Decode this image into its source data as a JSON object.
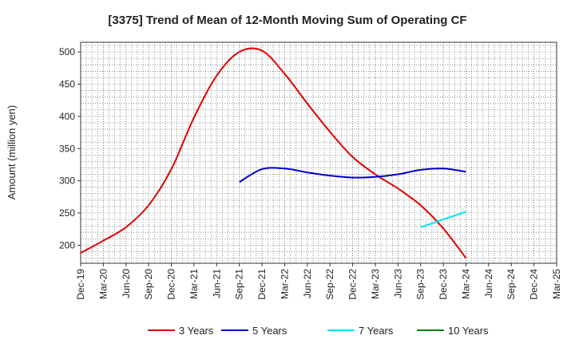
{
  "chart_data": {
    "type": "line",
    "title": "[3375]  Trend of Mean of 12-Month Moving Sum of Operating CF",
    "xlabel": "",
    "ylabel": "Amount (million yen)",
    "ylim": [
      172,
      515
    ],
    "yticks": [
      200,
      250,
      300,
      350,
      400,
      450,
      500
    ],
    "grid": true,
    "legend": "bottom",
    "categories": [
      "Dec-19",
      "Mar-20",
      "Jun-20",
      "Sep-20",
      "Dec-20",
      "Mar-21",
      "Jun-21",
      "Sep-21",
      "Dec-21",
      "Mar-22",
      "Jun-22",
      "Sep-22",
      "Dec-22",
      "Mar-23",
      "Jun-23",
      "Sep-23",
      "Dec-23",
      "Mar-24",
      "Jun-24",
      "Sep-24",
      "Dec-24",
      "Mar-25"
    ],
    "series": [
      {
        "name": "3 Years",
        "color": "#e00000",
        "x": [
          "Dec-19",
          "Mar-20",
          "Jun-20",
          "Sep-20",
          "Dec-20",
          "Mar-21",
          "Jun-21",
          "Sep-21",
          "Dec-21",
          "Mar-22",
          "Jun-22",
          "Sep-22",
          "Dec-22",
          "Mar-23",
          "Jun-23",
          "Sep-23",
          "Dec-23",
          "Mar-24"
        ],
        "values": [
          188,
          207,
          228,
          262,
          318,
          398,
          463,
          500,
          502,
          466,
          420,
          376,
          337,
          310,
          288,
          262,
          226,
          180
        ]
      },
      {
        "name": "5 Years",
        "color": "#0000cc",
        "x": [
          "Sep-21",
          "Dec-21",
          "Mar-22",
          "Jun-22",
          "Sep-22",
          "Dec-22",
          "Mar-23",
          "Jun-23",
          "Sep-23",
          "Dec-23",
          "Mar-24"
        ],
        "values": [
          298,
          318,
          319,
          313,
          308,
          305,
          306,
          310,
          317,
          319,
          314
        ]
      },
      {
        "name": "7 Years",
        "color": "#00e5ee",
        "x": [
          "Sep-23",
          "Dec-23",
          "Mar-24"
        ],
        "values": [
          228,
          240,
          252
        ]
      },
      {
        "name": "10 Years",
        "color": "#008000",
        "x": [],
        "values": []
      }
    ]
  }
}
